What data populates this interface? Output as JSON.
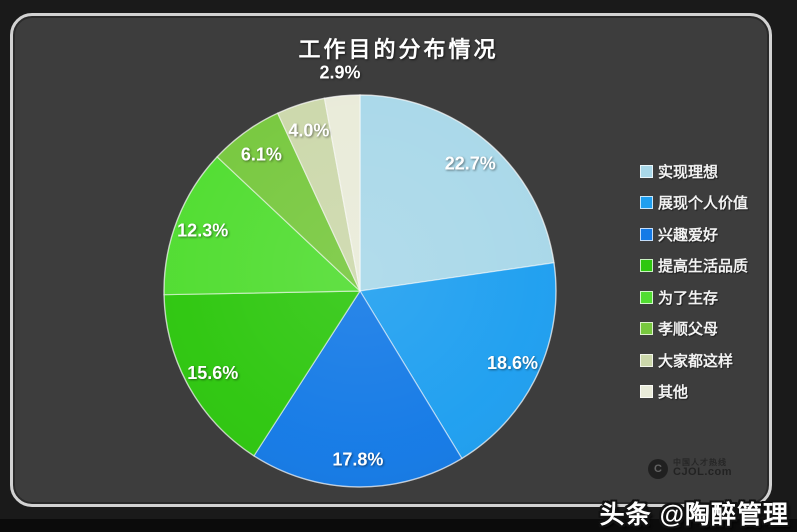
{
  "page": {
    "background": "#1a1a1a",
    "panel_background": "#3d3d3d",
    "panel_border_color": "#d2d2d2"
  },
  "title": "工作目的分布情况",
  "chart_data": {
    "type": "pie",
    "title": "工作目的分布情况",
    "legend_position": "right",
    "start_angle_deg": 0,
    "direction": "clockwise",
    "slices": [
      {
        "label": "实现理想",
        "value": 22.7,
        "display": "22.7%",
        "color": "#a9d8e9"
      },
      {
        "label": "展现个人价值",
        "value": 18.6,
        "display": "18.6%",
        "color": "#1e9ff0"
      },
      {
        "label": "兴趣爱好",
        "value": 17.8,
        "display": "17.8%",
        "color": "#147ae6"
      },
      {
        "label": "提高生活品质",
        "value": 15.6,
        "display": "15.6%",
        "color": "#2ec70f"
      },
      {
        "label": "为了生存",
        "value": 12.3,
        "display": "12.3%",
        "color": "#51dd31"
      },
      {
        "label": "孝顺父母",
        "value": 6.1,
        "display": "6.1%",
        "color": "#77c83e"
      },
      {
        "label": "大家都这样",
        "value": 4.0,
        "display": "4.0%",
        "color": "#ccd8ab"
      },
      {
        "label": "其他",
        "value": 2.9,
        "display": "2.9%",
        "color": "#e9ebd9"
      }
    ]
  },
  "watermark": {
    "logo_glyph": "C",
    "line1": "中国人才热线",
    "line2": "CJOL.com"
  },
  "footer": {
    "credit": "头条 @陶醉管理"
  }
}
